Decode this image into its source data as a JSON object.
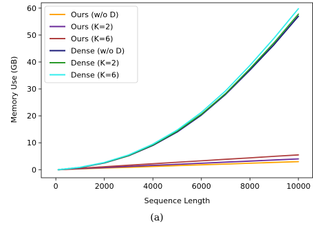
{
  "chart_data": {
    "type": "line",
    "xlabel": "Sequence Length",
    "ylabel": "Memory Use (GB)",
    "caption": "(a)",
    "xlim": [
      -600,
      10600
    ],
    "ylim": [
      -3,
      62
    ],
    "xticks": [
      0,
      2000,
      4000,
      6000,
      8000,
      10000
    ],
    "yticks": [
      0,
      10,
      20,
      30,
      40,
      50,
      60
    ],
    "grid": false,
    "legend_position": "top-left",
    "x": [
      100,
      1000,
      2000,
      3000,
      4000,
      5000,
      6000,
      7000,
      8000,
      9000,
      10000
    ],
    "series": [
      {
        "name": "Ours (w/o D)",
        "color": "#ffa500",
        "values": [
          0.0,
          0.3,
          0.6,
          0.9,
          1.2,
          1.5,
          1.8,
          2.1,
          2.4,
          2.7,
          3.0
        ]
      },
      {
        "name": "Ours (K=2)",
        "color": "#6a2a9a",
        "values": [
          0.0,
          0.4,
          0.8,
          1.2,
          1.6,
          2.0,
          2.4,
          2.8,
          3.2,
          3.6,
          4.0
        ]
      },
      {
        "name": "Ours (K=6)",
        "color": "#b04040",
        "values": [
          0.0,
          0.55,
          1.1,
          1.65,
          2.2,
          2.75,
          3.3,
          3.85,
          4.4,
          4.95,
          5.5
        ]
      },
      {
        "name": "Dense (w/o D)",
        "color": "#1c1c7a",
        "values": [
          0.0,
          0.8,
          2.5,
          5.2,
          9.0,
          14.0,
          20.3,
          28.0,
          37.0,
          46.5,
          57.0
        ]
      },
      {
        "name": "Dense (K=2)",
        "color": "#2a9a2a",
        "values": [
          0.0,
          0.85,
          2.6,
          5.3,
          9.2,
          14.3,
          20.6,
          28.3,
          37.5,
          47.2,
          57.8
        ]
      },
      {
        "name": "Dense (K=6)",
        "color": "#33eeee",
        "values": [
          0.0,
          0.9,
          2.7,
          5.5,
          9.5,
          14.7,
          21.3,
          29.3,
          38.7,
          48.9,
          59.8
        ]
      }
    ]
  }
}
